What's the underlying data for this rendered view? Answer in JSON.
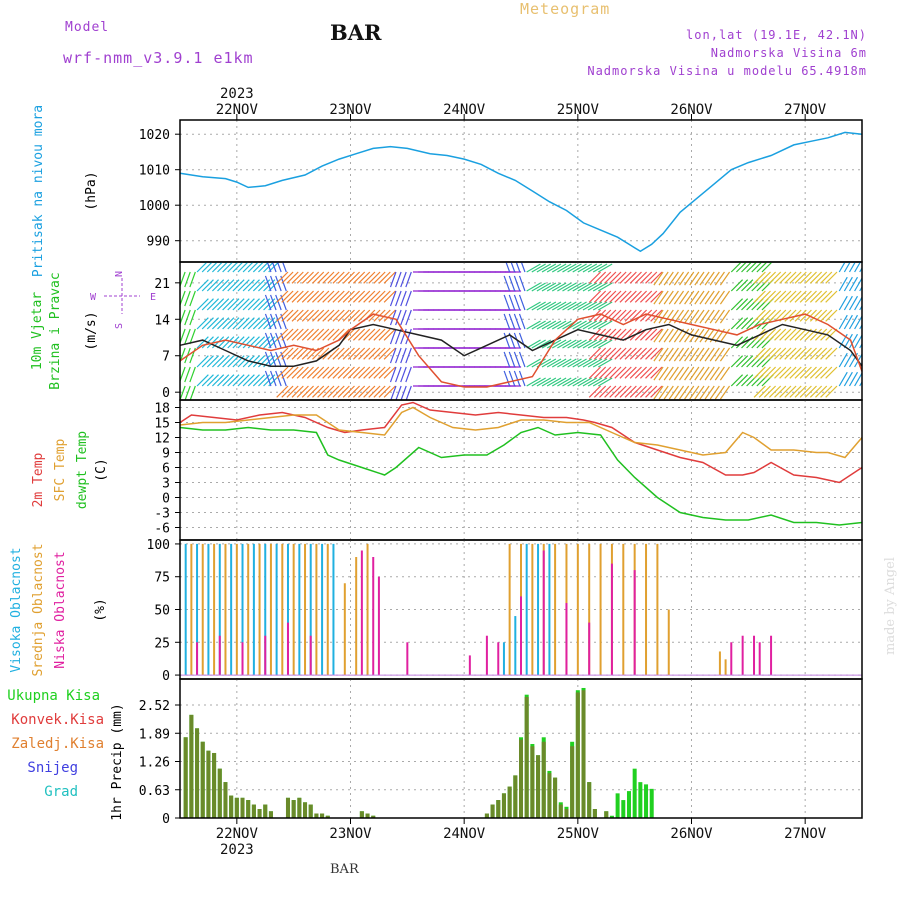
{
  "header": {
    "model_label": "Model",
    "model_name": "wrf-nmm_v3.9.1 e1km",
    "station": "BAR",
    "meteogram_label": "Meteogram",
    "coords": "lon,lat (19.1E, 42.1N)",
    "altitude": "Nadmorska Visina 6m",
    "model_altitude": "Nadmorska Visina u modelu 65.4918m"
  },
  "footer": {
    "station": "BAR",
    "credit": "made by Angel"
  },
  "colors": {
    "pressure": "#1aa0e0",
    "temp2m": "#e03c3c",
    "sfctemp": "#e0a030",
    "dewpt": "#20c020",
    "cloud_high": "#20b0e0",
    "cloud_mid": "#e0a030",
    "cloud_low": "#e020a0",
    "precip_total": "#20d020",
    "precip_conv": "#e03c3c",
    "precip_strat": "#e08030",
    "snow": "#4040e0",
    "hail": "#20c0c0",
    "wind_compass": "#a040d0"
  },
  "chart_data": [
    {
      "id": "pressure",
      "type": "line",
      "ylabel": "Pritisak na nivou mora",
      "unit": "(hPa)",
      "ylim": [
        984,
        1024
      ],
      "yticks": [
        990,
        1000,
        1010,
        1020
      ],
      "x": [
        21.5,
        21.7,
        21.9,
        22.0,
        22.1,
        22.25,
        22.4,
        22.6,
        22.75,
        22.9,
        23.05,
        23.2,
        23.35,
        23.5,
        23.7,
        23.85,
        24.0,
        24.15,
        24.3,
        24.45,
        24.6,
        24.75,
        24.9,
        25.05,
        25.2,
        25.35,
        25.45,
        25.55,
        25.65,
        25.75,
        25.9,
        26.05,
        26.2,
        26.35,
        26.5,
        26.7,
        26.9,
        27.05,
        27.2,
        27.35,
        27.5
      ],
      "values": [
        1009,
        1008,
        1007.5,
        1006.5,
        1005,
        1005.5,
        1007,
        1008.5,
        1011,
        1013,
        1014.5,
        1016,
        1016.5,
        1016,
        1014.5,
        1014,
        1013,
        1011.5,
        1009,
        1007,
        1004,
        1001,
        998.5,
        995,
        993,
        991,
        989,
        987,
        989,
        992,
        998,
        1002,
        1006,
        1010,
        1012,
        1014,
        1017,
        1018,
        1019,
        1020.5,
        1020
      ]
    },
    {
      "id": "wind",
      "type": "vector",
      "ylabel": "10m Vjetar Brzina i Pravac",
      "unit": "(m/s)",
      "ylim": [
        -1.5,
        25
      ],
      "yticks": [
        0,
        7,
        14,
        21
      ],
      "compass": {
        "n": "N",
        "s": "S",
        "e": "E",
        "w": "W"
      },
      "speed_x": [
        21.5,
        21.7,
        21.9,
        22.1,
        22.3,
        22.5,
        22.7,
        22.9,
        23.0,
        23.2,
        23.4,
        23.6,
        23.8,
        24.0,
        24.2,
        24.4,
        24.6,
        24.8,
        25.0,
        25.2,
        25.4,
        25.6,
        25.8,
        26.0,
        26.2,
        26.4,
        26.6,
        26.8,
        27.0,
        27.2,
        27.4,
        27.5
      ],
      "speed_values": [
        9,
        10,
        8,
        6,
        5,
        5,
        6,
        9,
        12,
        13,
        12,
        11,
        10,
        7,
        9,
        11,
        8,
        10,
        12,
        11,
        10,
        12,
        13,
        11,
        10,
        9,
        11,
        13,
        12,
        11,
        8,
        5
      ],
      "gust_values": [
        6,
        9,
        10,
        9,
        8,
        9,
        8,
        10,
        12,
        15,
        14,
        7,
        2,
        1,
        1,
        2,
        3,
        10,
        14,
        15,
        13,
        15,
        14,
        13,
        12,
        11,
        13,
        14,
        15,
        13,
        10,
        4
      ],
      "direction_segments": [
        {
          "from": 21.5,
          "to": 21.65,
          "deg": 200,
          "color": "#30d030"
        },
        {
          "from": 21.65,
          "to": 22.3,
          "deg": 45,
          "color": "#20b8d8"
        },
        {
          "from": 22.3,
          "to": 22.45,
          "deg": 340,
          "color": "#4060e0"
        },
        {
          "from": 22.45,
          "to": 23.4,
          "deg": 225,
          "color": "#f08030"
        },
        {
          "from": 23.4,
          "to": 23.55,
          "deg": 200,
          "color": "#5050e0"
        },
        {
          "from": 23.55,
          "to": 24.4,
          "deg": 90,
          "color": "#9020d0"
        },
        {
          "from": 24.4,
          "to": 24.55,
          "deg": 340,
          "color": "#4060e0"
        },
        {
          "from": 24.55,
          "to": 25.2,
          "deg": 60,
          "color": "#30c880"
        },
        {
          "from": 25.2,
          "to": 25.75,
          "deg": 225,
          "color": "#f05050"
        },
        {
          "from": 25.75,
          "to": 26.35,
          "deg": 215,
          "color": "#e0a030"
        },
        {
          "from": 26.35,
          "to": 26.65,
          "deg": 45,
          "color": "#30c030"
        },
        {
          "from": 26.65,
          "to": 27.3,
          "deg": 225,
          "color": "#e0c030"
        },
        {
          "from": 27.3,
          "to": 27.5,
          "deg": 30,
          "color": "#20a0e0"
        }
      ]
    },
    {
      "id": "temperature",
      "type": "line",
      "ylabel": "2m Temp",
      "ylabel2": "SFC Temp",
      "ylabel3": "dewpt Temp",
      "unit": "(C)",
      "ylim": [
        -8.5,
        19.5
      ],
      "yticks": [
        -6,
        -3,
        0,
        3,
        6,
        9,
        12,
        15,
        18
      ],
      "series": [
        {
          "name": "2m Temp",
          "key": "temp2m",
          "x": [
            21.5,
            21.6,
            21.8,
            22.0,
            22.2,
            22.4,
            22.6,
            22.8,
            22.95,
            23.1,
            23.3,
            23.45,
            23.55,
            23.7,
            23.9,
            24.1,
            24.3,
            24.5,
            24.7,
            24.9,
            25.05,
            25.15,
            25.3,
            25.5,
            25.7,
            25.9,
            26.1,
            26.3,
            26.45,
            26.55,
            26.7,
            26.9,
            27.1,
            27.2,
            27.3,
            27.5
          ],
          "values": [
            15,
            16.5,
            16,
            15.5,
            16.5,
            17,
            16,
            14,
            13,
            13.5,
            14,
            18.5,
            19,
            17.5,
            17,
            16.5,
            17,
            16.5,
            16,
            16,
            15.5,
            15,
            14,
            11,
            9.5,
            8,
            7,
            4.5,
            4.5,
            5,
            7,
            4.5,
            4,
            3.5,
            3,
            6
          ]
        },
        {
          "name": "SFC Temp",
          "key": "sfctemp",
          "x": [
            21.5,
            21.7,
            21.9,
            22.1,
            22.3,
            22.5,
            22.7,
            22.9,
            23.1,
            23.3,
            23.45,
            23.55,
            23.7,
            23.9,
            24.1,
            24.3,
            24.5,
            24.7,
            24.9,
            25.1,
            25.3,
            25.5,
            25.7,
            25.9,
            26.1,
            26.3,
            26.45,
            26.55,
            26.7,
            26.9,
            27.1,
            27.2,
            27.35,
            27.5
          ],
          "values": [
            14.5,
            15,
            15,
            15.5,
            16,
            16.5,
            16.5,
            13.5,
            13,
            12.5,
            17,
            18,
            16,
            14,
            13.5,
            14,
            15.5,
            15.5,
            15,
            15,
            13,
            11,
            10.5,
            9.5,
            8.5,
            9,
            13,
            12,
            9.5,
            9.5,
            9,
            9,
            8,
            12
          ]
        },
        {
          "name": "dewpt Temp",
          "key": "dewpt",
          "x": [
            21.5,
            21.7,
            21.9,
            22.1,
            22.3,
            22.5,
            22.7,
            22.8,
            22.9,
            23.1,
            23.3,
            23.4,
            23.6,
            23.8,
            24.0,
            24.2,
            24.35,
            24.5,
            24.65,
            24.8,
            25.0,
            25.2,
            25.35,
            25.5,
            25.7,
            25.9,
            26.1,
            26.3,
            26.5,
            26.7,
            26.9,
            27.1,
            27.3,
            27.5
          ],
          "values": [
            14,
            13.5,
            13.5,
            14,
            13.5,
            13.5,
            13,
            8.5,
            7.5,
            6,
            4.5,
            6,
            10,
            8,
            8.5,
            8.5,
            10.5,
            13,
            14,
            12.5,
            13,
            12.5,
            7.5,
            4,
            0,
            -3,
            -4,
            -4.5,
            -4.5,
            -3.5,
            -5,
            -5,
            -5.5,
            -5
          ]
        }
      ]
    },
    {
      "id": "cloud",
      "type": "bar",
      "ylabel": "Visoka Oblacnost",
      "ylabel2": "Srednja Oblacnost",
      "ylabel3": "Niska Oblacnost",
      "unit": "(%)",
      "ylim": [
        -3,
        103
      ],
      "yticks": [
        0,
        25,
        50,
        75,
        100
      ],
      "series": [
        {
          "name": "Visoka Oblacnost",
          "key": "cloud_high",
          "x": [
            21.55,
            21.65,
            21.75,
            21.85,
            21.95,
            22.05,
            22.15,
            22.25,
            22.35,
            22.45,
            22.55,
            22.65,
            22.75,
            22.85,
            24.35,
            24.45,
            24.55,
            24.65,
            24.75
          ],
          "values": [
            100,
            100,
            100,
            100,
            100,
            100,
            100,
            100,
            100,
            100,
            100,
            100,
            100,
            100,
            25,
            45,
            100,
            100,
            100
          ]
        },
        {
          "name": "Srednja Oblacnost",
          "key": "cloud_mid",
          "x": [
            21.6,
            21.7,
            21.8,
            21.9,
            22.0,
            22.1,
            22.2,
            22.3,
            22.4,
            22.5,
            22.6,
            22.7,
            22.8,
            22.95,
            23.05,
            23.15,
            24.4,
            24.5,
            24.6,
            24.7,
            24.8,
            24.9,
            25.0,
            25.1,
            25.2,
            25.3,
            25.4,
            25.5,
            25.6,
            25.7,
            25.8,
            26.25,
            26.3
          ],
          "values": [
            100,
            100,
            100,
            100,
            100,
            100,
            100,
            100,
            100,
            100,
            100,
            100,
            100,
            70,
            90,
            100,
            100,
            100,
            100,
            100,
            100,
            100,
            100,
            100,
            100,
            100,
            100,
            100,
            100,
            100,
            50,
            18,
            12
          ]
        },
        {
          "name": "Niska Oblacnost",
          "key": "cloud_low",
          "x": [
            21.65,
            21.85,
            22.05,
            22.25,
            22.45,
            22.65,
            23.1,
            23.2,
            23.25,
            23.5,
            24.05,
            24.2,
            24.3,
            24.5,
            24.7,
            24.9,
            25.1,
            25.3,
            25.5,
            26.35,
            26.45,
            26.55,
            26.6,
            26.7
          ],
          "values": [
            25,
            30,
            25,
            30,
            40,
            30,
            95,
            90,
            75,
            25,
            15,
            30,
            25,
            60,
            95,
            55,
            40,
            85,
            80,
            25,
            30,
            30,
            25,
            30
          ]
        }
      ]
    },
    {
      "id": "precip",
      "type": "bar",
      "ylabel": "1hr Precip",
      "unit": "(mm)",
      "ylim": [
        0,
        3.1
      ],
      "yticks": [
        0,
        0.63,
        1.26,
        1.89,
        2.52
      ],
      "legend": [
        "Ukupna Kisa",
        "Konvek.Kisa",
        "Zaledj.Kisa",
        "Snijeg",
        "Grad"
      ],
      "x": [
        21.55,
        21.6,
        21.65,
        21.7,
        21.75,
        21.8,
        21.85,
        21.9,
        21.95,
        22.0,
        22.05,
        22.1,
        22.15,
        22.2,
        22.25,
        22.3,
        22.45,
        22.5,
        22.55,
        22.6,
        22.65,
        22.7,
        22.75,
        22.8,
        23.1,
        23.15,
        23.2,
        24.2,
        24.25,
        24.3,
        24.35,
        24.4,
        24.45,
        24.5,
        24.55,
        24.6,
        24.65,
        24.7,
        24.75,
        24.8,
        24.85,
        24.9,
        24.95,
        25.0,
        25.05,
        25.1,
        25.15,
        25.25,
        25.3,
        25.35,
        25.4,
        25.45,
        25.5,
        25.55,
        25.6,
        25.65
      ],
      "total": [
        1.8,
        2.3,
        2.0,
        1.7,
        1.5,
        1.45,
        1.1,
        0.8,
        0.5,
        0.45,
        0.45,
        0.4,
        0.3,
        0.2,
        0.3,
        0.15,
        0.45,
        0.4,
        0.45,
        0.35,
        0.3,
        0.1,
        0.1,
        0.05,
        0.15,
        0.1,
        0.05,
        0.1,
        0.3,
        0.4,
        0.55,
        0.7,
        0.95,
        1.8,
        2.75,
        1.65,
        1.4,
        1.8,
        1.05,
        0.9,
        0.35,
        0.25,
        1.7,
        2.85,
        2.9,
        0.8,
        0.2,
        0.15,
        0.05,
        0.55,
        0.4,
        0.6,
        1.1,
        0.8,
        0.75,
        0.65
      ],
      "convective": [
        1.8,
        2.3,
        2.0,
        1.7,
        1.5,
        1.45,
        1.1,
        0.8,
        0.5,
        0.45,
        0.45,
        0.4,
        0.3,
        0.2,
        0.3,
        0.15,
        0.45,
        0.4,
        0.45,
        0.35,
        0.3,
        0.1,
        0.1,
        0.05,
        0.15,
        0.1,
        0.05,
        0.1,
        0.3,
        0.4,
        0.55,
        0.7,
        0.95,
        1.75,
        2.7,
        1.6,
        1.4,
        1.7,
        1.0,
        0.9,
        0.3,
        0.2,
        1.6,
        2.8,
        2.85,
        0.8,
        0.2,
        0.15,
        0.0,
        0.0,
        0.0,
        0.0,
        0.0,
        0.0,
        0.0,
        0.0
      ]
    }
  ],
  "axis": {
    "xlim": [
      21.5,
      27.5
    ],
    "day_ticks": [
      22,
      23,
      24,
      25,
      26,
      27
    ],
    "day_labels": [
      "22NOV",
      "23NOV",
      "24NOV",
      "25NOV",
      "26NOV",
      "27NOV"
    ],
    "year": "2023"
  }
}
